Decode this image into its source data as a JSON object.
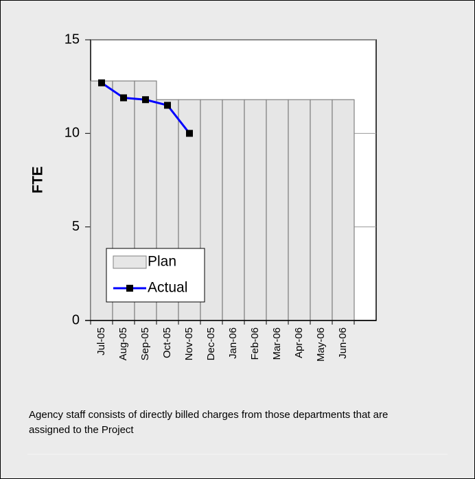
{
  "chart_data": {
    "type": "bar_line",
    "y_label": "FTE",
    "categories": [
      "Jul-05",
      "Aug-05",
      "Sep-05",
      "Oct-05",
      "Nov-05",
      "Dec-05",
      "Jan-06",
      "Feb-06",
      "Mar-06",
      "Apr-06",
      "May-06",
      "Jun-06",
      null
    ],
    "series": [
      {
        "name": "Plan",
        "kind": "bar",
        "color": "#e6e6e6",
        "values": [
          12.8,
          12.8,
          12.8,
          11.8,
          11.8,
          11.8,
          11.8,
          11.8,
          11.8,
          11.8,
          11.8,
          11.8,
          null
        ]
      },
      {
        "name": "Actual",
        "kind": "line",
        "color": "#0000ff",
        "values": [
          12.7,
          11.9,
          11.8,
          11.5,
          10.0,
          null,
          null,
          null,
          null,
          null,
          null,
          null,
          null
        ]
      }
    ],
    "ylim": [
      0,
      15
    ],
    "yticks": [
      0,
      5,
      10,
      15
    ],
    "grid": true,
    "legend": "lower left",
    "caption": "Agency staff consists of directly billed charges from those departments that are assigned to the Project"
  }
}
